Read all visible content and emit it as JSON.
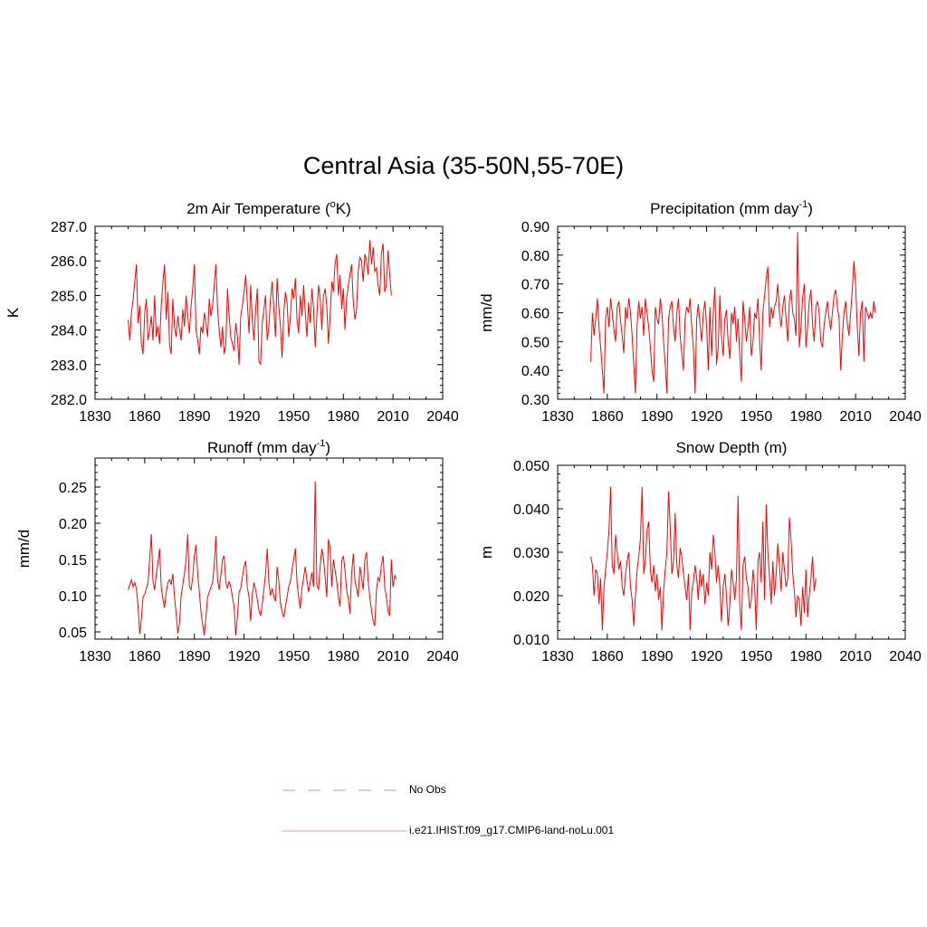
{
  "title": "Central Asia (35-50N,55-70E)",
  "colors": {
    "model": "#ff0000",
    "obs": "#9999ff",
    "axis": "#000000"
  },
  "legend": [
    {
      "label": "No Obs",
      "style": "dashed"
    },
    {
      "label": "i.e21.IHIST.f09_g17.CMIP6-land-noLu.001",
      "style": "solid"
    }
  ],
  "chart_data": [
    {
      "type": "line",
      "title": "2m Air Temperature (",
      "title_sup": "o",
      "title_tail": "K)",
      "ylabel": "K",
      "xlim": [
        1830,
        2040
      ],
      "ylim": [
        282.0,
        287.0
      ],
      "xticks": [
        1830,
        1860,
        1890,
        1920,
        1950,
        1980,
        2010,
        2040
      ],
      "xtick_labels": [
        "1830",
        "1860",
        "1890",
        "1920",
        "1950",
        "1980",
        "2010",
        "2040"
      ],
      "yticks": [
        282.0,
        283.0,
        284.0,
        285.0,
        286.0,
        287.0
      ],
      "ytick_labels": [
        "282.0",
        "283.0",
        "284.0",
        "285.0",
        "286.0",
        "287.0"
      ],
      "series": [
        {
          "name": "i.e21.IHIST.f09_g17.CMIP6-land-noLu.001",
          "x0": 1850,
          "values": [
            284.3,
            283.7,
            284.5,
            284.9,
            285.4,
            285.9,
            284.2,
            284.7,
            283.6,
            283.3,
            284.5,
            284.9,
            283.7,
            284.0,
            284.4,
            283.7,
            285.0,
            283.8,
            284.1,
            283.6,
            284.7,
            285.4,
            285.9,
            284.3,
            285.1,
            283.6,
            283.3,
            284.9,
            284.1,
            283.8,
            284.4,
            284.0,
            283.7,
            284.6,
            284.1,
            285.0,
            284.4,
            283.9,
            284.7,
            285.2,
            285.9,
            284.0,
            283.7,
            283.3,
            284.1,
            283.9,
            284.5,
            284.2,
            283.8,
            284.9,
            284.4,
            284.7,
            285.3,
            285.9,
            284.6,
            284.0,
            283.5,
            284.1,
            283.3,
            283.6,
            285.2,
            284.4,
            283.8,
            283.6,
            283.4,
            284.2,
            283.8,
            283.0,
            284.4,
            284.7,
            285.1,
            285.6,
            284.8,
            283.9,
            285.3,
            284.3,
            283.7,
            284.6,
            285.2,
            283.1,
            283.0,
            284.2,
            284.6,
            285.0,
            283.7,
            284.1,
            284.9,
            285.4,
            284.6,
            283.8,
            285.5,
            284.7,
            284.1,
            283.2,
            284.5,
            285.1,
            284.8,
            283.8,
            284.4,
            285.2,
            284.9,
            285.5,
            284.3,
            283.9,
            285.0,
            284.4,
            285.3,
            284.5,
            283.8,
            284.8,
            284.2,
            285.2,
            284.6,
            283.5,
            284.4,
            285.3,
            284.9,
            284.0,
            285.0,
            285.2,
            284.7,
            283.6,
            284.4,
            285.4,
            285.1,
            285.9,
            286.2,
            285.0,
            285.6,
            284.6,
            285.2,
            284.0,
            284.9,
            285.3,
            285.6,
            285.9,
            284.8,
            284.3,
            284.6,
            285.7,
            286.1,
            286.0,
            285.4,
            286.2,
            286.0,
            285.6,
            286.6,
            285.9,
            286.4,
            285.7,
            285.8,
            285.3,
            285.0,
            286.2,
            286.5,
            285.1,
            285.3,
            286.3,
            285.6,
            285.0
          ]
        }
      ]
    },
    {
      "type": "line",
      "title": "Precipitation (mm day",
      "title_sup": "-1",
      "title_tail": ")",
      "ylabel": "mm/d",
      "xlim": [
        1830,
        2040
      ],
      "ylim": [
        0.3,
        0.9
      ],
      "xticks": [
        1830,
        1860,
        1890,
        1920,
        1950,
        1980,
        2010,
        2040
      ],
      "xtick_labels": [
        "1830",
        "1860",
        "1890",
        "1920",
        "1950",
        "1980",
        "2010",
        "2040"
      ],
      "yticks": [
        0.3,
        0.4,
        0.5,
        0.6,
        0.7,
        0.8,
        0.9
      ],
      "ytick_labels": [
        "0.30",
        "0.40",
        "0.50",
        "0.60",
        "0.70",
        "0.80",
        "0.90"
      ],
      "series": [
        {
          "name": "i.e21.IHIST.f09_g17.CMIP6-land-noLu.001",
          "x0": 1850,
          "values": [
            0.43,
            0.6,
            0.52,
            0.58,
            0.65,
            0.55,
            0.48,
            0.4,
            0.32,
            0.58,
            0.62,
            0.55,
            0.65,
            0.6,
            0.54,
            0.5,
            0.62,
            0.64,
            0.57,
            0.52,
            0.46,
            0.62,
            0.58,
            0.65,
            0.6,
            0.52,
            0.42,
            0.32,
            0.56,
            0.64,
            0.58,
            0.62,
            0.52,
            0.65,
            0.6,
            0.55,
            0.48,
            0.4,
            0.36,
            0.62,
            0.58,
            0.56,
            0.65,
            0.6,
            0.5,
            0.42,
            0.32,
            0.58,
            0.62,
            0.64,
            0.55,
            0.5,
            0.6,
            0.65,
            0.52,
            0.46,
            0.4,
            0.58,
            0.62,
            0.6,
            0.65,
            0.55,
            0.48,
            0.32,
            0.58,
            0.63,
            0.56,
            0.5,
            0.6,
            0.64,
            0.55,
            0.4,
            0.62,
            0.45,
            0.6,
            0.69,
            0.42,
            0.48,
            0.66,
            0.52,
            0.45,
            0.58,
            0.61,
            0.5,
            0.44,
            0.6,
            0.56,
            0.62,
            0.5,
            0.58,
            0.46,
            0.36,
            0.64,
            0.58,
            0.5,
            0.55,
            0.62,
            0.45,
            0.5,
            0.6,
            0.58,
            0.65,
            0.5,
            0.4,
            0.6,
            0.66,
            0.72,
            0.76,
            0.55,
            0.62,
            0.58,
            0.62,
            0.64,
            0.7,
            0.6,
            0.55,
            0.62,
            0.66,
            0.58,
            0.5,
            0.64,
            0.68,
            0.6,
            0.58,
            0.52,
            0.88,
            0.48,
            0.55,
            0.65,
            0.7,
            0.48,
            0.55,
            0.64,
            0.68,
            0.56,
            0.5,
            0.62,
            0.64,
            0.6,
            0.5,
            0.48,
            0.56,
            0.6,
            0.64,
            0.58,
            0.54,
            0.6,
            0.66,
            0.68,
            0.62,
            0.58,
            0.4,
            0.52,
            0.6,
            0.64,
            0.56,
            0.52,
            0.6,
            0.68,
            0.78,
            0.7,
            0.55,
            0.45,
            0.6,
            0.64,
            0.43,
            0.62,
            0.6,
            0.58,
            0.6,
            0.58,
            0.64,
            0.6
          ]
        }
      ]
    },
    {
      "type": "line",
      "title": "Runoff (mm day",
      "title_sup": "-1",
      "title_tail": ")",
      "ylabel": "mm/d",
      "xlim": [
        1830,
        2040
      ],
      "ylim": [
        0.04,
        0.29
      ],
      "xticks": [
        1830,
        1860,
        1890,
        1920,
        1950,
        1980,
        2010,
        2040
      ],
      "xtick_labels": [
        "1830",
        "1860",
        "1890",
        "1920",
        "1950",
        "1980",
        "2010",
        "2040"
      ],
      "yticks": [
        0.05,
        0.1,
        0.15,
        0.2,
        0.25
      ],
      "ytick_labels": [
        "0.05",
        "0.10",
        "0.15",
        "0.20",
        "0.25"
      ],
      "series": [
        {
          "name": "i.e21.IHIST.f09_g17.CMIP6-land-noLu.001",
          "x0": 1850,
          "values": [
            0.108,
            0.115,
            0.122,
            0.112,
            0.118,
            0.11,
            0.085,
            0.047,
            0.068,
            0.098,
            0.102,
            0.11,
            0.118,
            0.15,
            0.185,
            0.12,
            0.108,
            0.13,
            0.145,
            0.165,
            0.112,
            0.095,
            0.083,
            0.105,
            0.118,
            0.122,
            0.115,
            0.13,
            0.098,
            0.075,
            0.048,
            0.062,
            0.1,
            0.115,
            0.13,
            0.15,
            0.185,
            0.112,
            0.108,
            0.125,
            0.155,
            0.17,
            0.13,
            0.105,
            0.078,
            0.06,
            0.045,
            0.07,
            0.098,
            0.105,
            0.112,
            0.118,
            0.142,
            0.182,
            0.122,
            0.108,
            0.128,
            0.15,
            0.155,
            0.118,
            0.11,
            0.12,
            0.112,
            0.098,
            0.085,
            0.045,
            0.072,
            0.105,
            0.11,
            0.125,
            0.14,
            0.148,
            0.112,
            0.098,
            0.065,
            0.102,
            0.118,
            0.108,
            0.095,
            0.08,
            0.072,
            0.088,
            0.108,
            0.13,
            0.165,
            0.118,
            0.1,
            0.11,
            0.098,
            0.092,
            0.14,
            0.12,
            0.09,
            0.078,
            0.07,
            0.085,
            0.098,
            0.112,
            0.12,
            0.135,
            0.15,
            0.165,
            0.118,
            0.098,
            0.082,
            0.11,
            0.125,
            0.14,
            0.12,
            0.105,
            0.118,
            0.132,
            0.112,
            0.258,
            0.115,
            0.108,
            0.142,
            0.165,
            0.152,
            0.125,
            0.098,
            0.178,
            0.165,
            0.112,
            0.15,
            0.135,
            0.12,
            0.098,
            0.085,
            0.148,
            0.155,
            0.135,
            0.108,
            0.095,
            0.075,
            0.13,
            0.158,
            0.12,
            0.11,
            0.098,
            0.14,
            0.125,
            0.108,
            0.15,
            0.16,
            0.12,
            0.098,
            0.08,
            0.065,
            0.058,
            0.108,
            0.125,
            0.12,
            0.142,
            0.155,
            0.112,
            0.098,
            0.078,
            0.072,
            0.15,
            0.112,
            0.128,
            0.122
          ]
        }
      ]
    },
    {
      "type": "line",
      "title": "Snow Depth (m)",
      "title_sup": "",
      "title_tail": "",
      "ylabel": "m",
      "xlim": [
        1830,
        2040
      ],
      "ylim": [
        0.01,
        0.05
      ],
      "xticks": [
        1830,
        1860,
        1890,
        1920,
        1950,
        1980,
        2010,
        2040
      ],
      "xtick_labels": [
        "1830",
        "1860",
        "1890",
        "1920",
        "1950",
        "1980",
        "2010",
        "2040"
      ],
      "yticks": [
        0.01,
        0.02,
        0.03,
        0.04,
        0.05
      ],
      "ytick_labels": [
        "0.010",
        "0.020",
        "0.030",
        "0.040",
        "0.050"
      ],
      "series": [
        {
          "name": "i.e21.IHIST.f09_g17.CMIP6-land-noLu.001",
          "x0": 1850,
          "values": [
            0.029,
            0.027,
            0.02,
            0.026,
            0.025,
            0.018,
            0.024,
            0.012,
            0.022,
            0.026,
            0.03,
            0.035,
            0.045,
            0.027,
            0.025,
            0.034,
            0.03,
            0.026,
            0.028,
            0.022,
            0.02,
            0.025,
            0.028,
            0.03,
            0.022,
            0.019,
            0.013,
            0.02,
            0.026,
            0.029,
            0.033,
            0.045,
            0.025,
            0.028,
            0.035,
            0.037,
            0.026,
            0.023,
            0.027,
            0.021,
            0.025,
            0.019,
            0.022,
            0.012,
            0.021,
            0.026,
            0.03,
            0.044,
            0.036,
            0.025,
            0.028,
            0.039,
            0.027,
            0.024,
            0.031,
            0.029,
            0.025,
            0.022,
            0.019,
            0.025,
            0.012,
            0.021,
            0.023,
            0.027,
            0.024,
            0.019,
            0.026,
            0.022,
            0.025,
            0.018,
            0.023,
            0.02,
            0.03,
            0.026,
            0.034,
            0.03,
            0.023,
            0.027,
            0.022,
            0.014,
            0.022,
            0.025,
            0.02,
            0.013,
            0.018,
            0.026,
            0.023,
            0.019,
            0.024,
            0.043,
            0.018,
            0.012,
            0.027,
            0.029,
            0.024,
            0.022,
            0.017,
            0.019,
            0.026,
            0.022,
            0.012,
            0.028,
            0.03,
            0.023,
            0.037,
            0.019,
            0.041,
            0.03,
            0.024,
            0.018,
            0.028,
            0.02,
            0.025,
            0.032,
            0.027,
            0.021,
            0.03,
            0.026,
            0.022,
            0.024,
            0.038,
            0.033,
            0.025,
            0.021,
            0.015,
            0.02,
            0.019,
            0.013,
            0.022,
            0.016,
            0.026,
            0.015,
            0.02,
            0.024,
            0.029,
            0.021,
            0.024
          ]
        }
      ]
    }
  ]
}
